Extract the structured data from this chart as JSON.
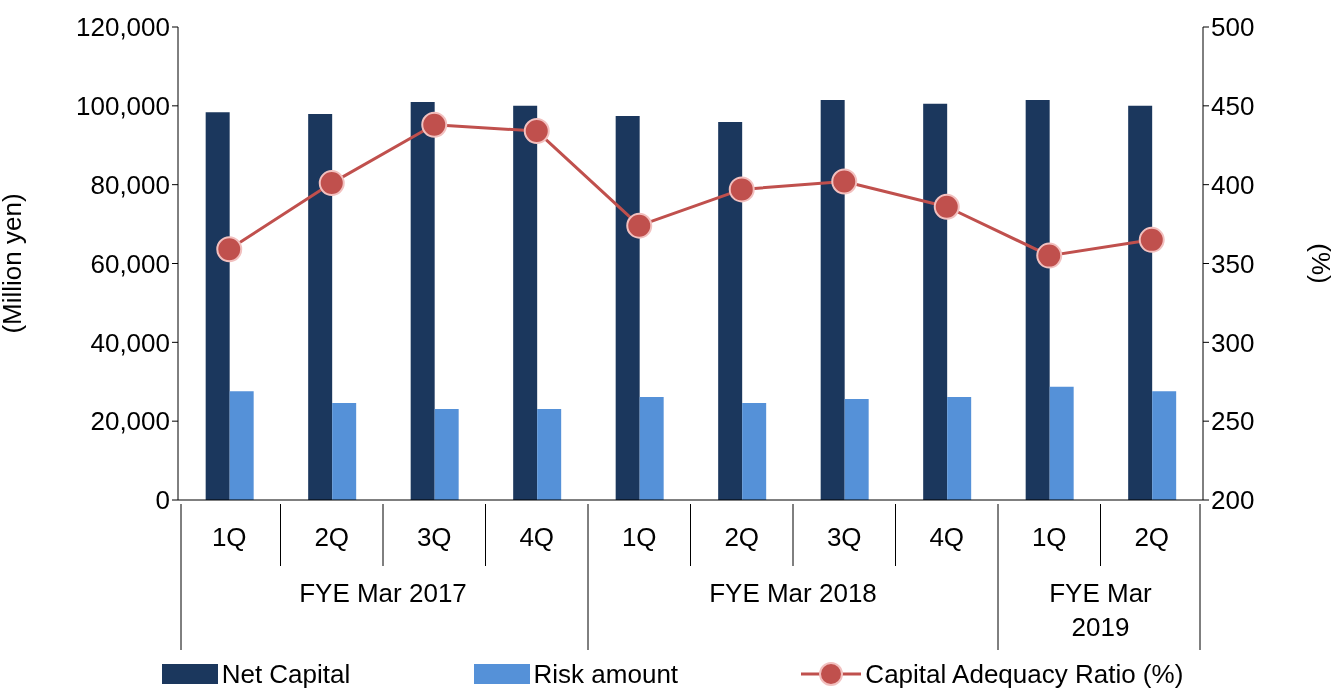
{
  "chart_data": {
    "type": "bar",
    "categories": [
      "1Q",
      "2Q",
      "3Q",
      "4Q",
      "1Q",
      "2Q",
      "3Q",
      "4Q",
      "1Q",
      "2Q"
    ],
    "ylabel": "(Million yen)",
    "y2label": "(%)",
    "ylim": [
      0,
      120000
    ],
    "yticks": [
      {
        "value": 0,
        "label": "0"
      },
      {
        "value": 20000,
        "label": "20,000"
      },
      {
        "value": 40000,
        "label": "40,000"
      },
      {
        "value": 60000,
        "label": "60,000"
      },
      {
        "value": 80000,
        "label": "80,000"
      },
      {
        "value": 100000,
        "label": "100,000"
      },
      {
        "value": 120000,
        "label": "120,000"
      }
    ],
    "y2lim": [
      200,
      500
    ],
    "y2ticks": [
      200,
      250,
      300,
      350,
      400,
      450,
      500
    ],
    "series": [
      {
        "name": "Net Capital",
        "color": "#1b375d",
        "values": [
          98400,
          97900,
          101000,
          100000,
          97400,
          95900,
          101500,
          100500,
          101500,
          100000
        ]
      },
      {
        "name": "Risk amount",
        "color": "#5591d8",
        "values": [
          27600,
          24600,
          23100,
          23100,
          26100,
          24600,
          25600,
          26100,
          28700,
          27600
        ]
      },
      {
        "name": "Capital Adequacy Ratio (%)",
        "type": "line",
        "axis": "y2",
        "color": "#c0504d",
        "marker": "circle",
        "values": [
          359,
          401,
          438,
          434,
          374,
          397,
          402,
          386,
          355,
          365
        ]
      }
    ],
    "annotations": [
      "FYE Mar 2017",
      "FYE Mar 2018",
      "FYE Mar 2019"
    ],
    "grid": false,
    "legend": "bottom"
  }
}
